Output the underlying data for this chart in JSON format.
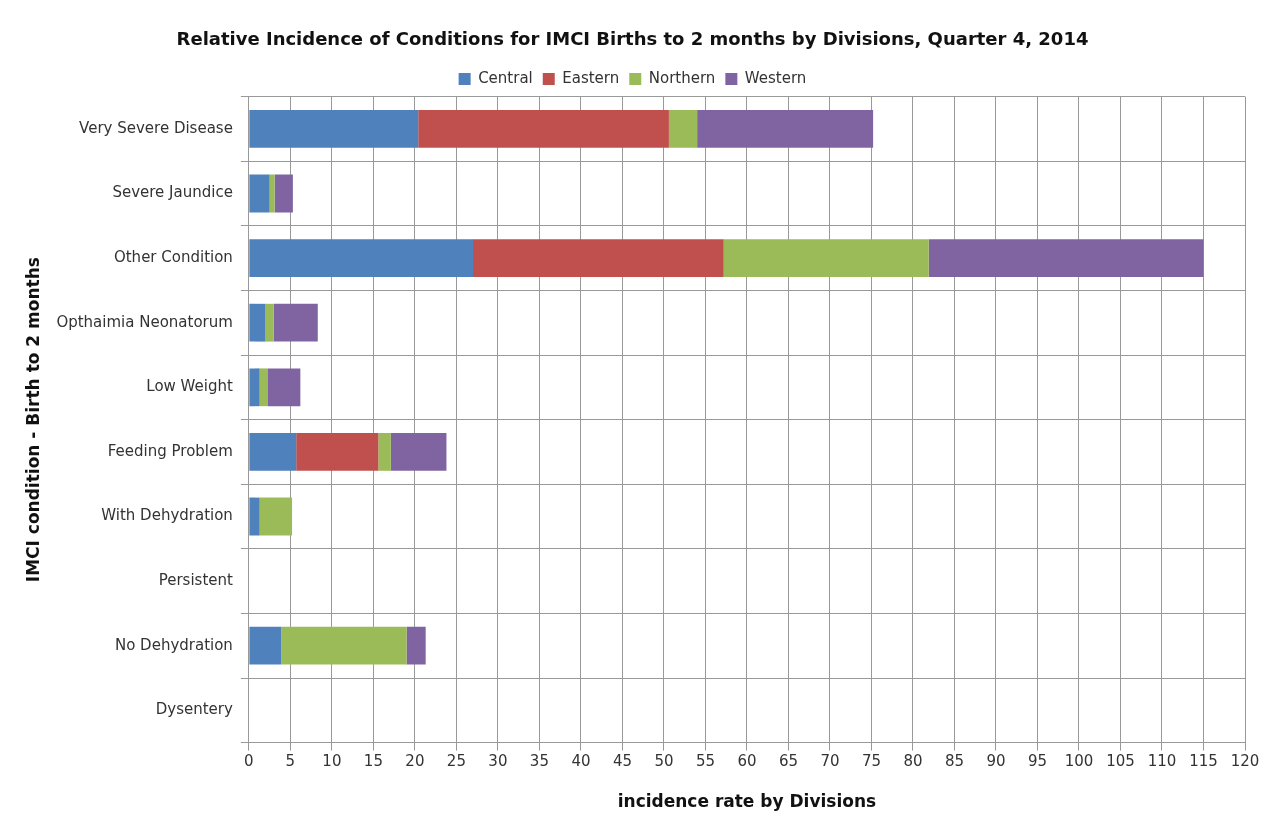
{
  "chart_data": {
    "type": "bar",
    "orientation": "horizontal",
    "stacked": true,
    "title": "Relative Incidence of Conditions for IMCI Births to 2 months by Divisions, Quarter 4, 2014",
    "xlabel": "incidence rate by Divisions",
    "ylabel": "IMCI condition - Birth to 2 months",
    "categories": [
      "Very Severe Disease",
      "Severe Jaundice",
      "Other Condition",
      "Opthaimia Neonatorum",
      "Low Weight",
      "Feeding Problem",
      "With Dehydration",
      "Persistent",
      "No Dehydration",
      "Dysentery"
    ],
    "series": [
      {
        "name": "Central",
        "color": "#4f81bd",
        "values": [
          20.4,
          2.5,
          27,
          2,
          1.3,
          5.7,
          1.3,
          0,
          3.9,
          0
        ]
      },
      {
        "name": "Eastern",
        "color": "#c0504d",
        "values": [
          30.2,
          0,
          30.2,
          0,
          0,
          9.9,
          0,
          0,
          0,
          0
        ]
      },
      {
        "name": "Northern",
        "color": "#9bbb59",
        "values": [
          3.4,
          0.6,
          24.7,
          1,
          1,
          1.5,
          3.9,
          0,
          15.1,
          0
        ]
      },
      {
        "name": "Western",
        "color": "#8064a2",
        "values": [
          21.2,
          2.2,
          33.1,
          5.3,
          3.9,
          6.7,
          0,
          0,
          2.3,
          0
        ]
      }
    ],
    "xlim": [
      0,
      120
    ],
    "xticks": [
      0,
      5,
      10,
      15,
      20,
      25,
      30,
      35,
      40,
      45,
      50,
      55,
      60,
      65,
      70,
      75,
      80,
      85,
      90,
      95,
      100,
      105,
      110,
      115,
      120
    ],
    "grid": true,
    "legend": "top"
  }
}
